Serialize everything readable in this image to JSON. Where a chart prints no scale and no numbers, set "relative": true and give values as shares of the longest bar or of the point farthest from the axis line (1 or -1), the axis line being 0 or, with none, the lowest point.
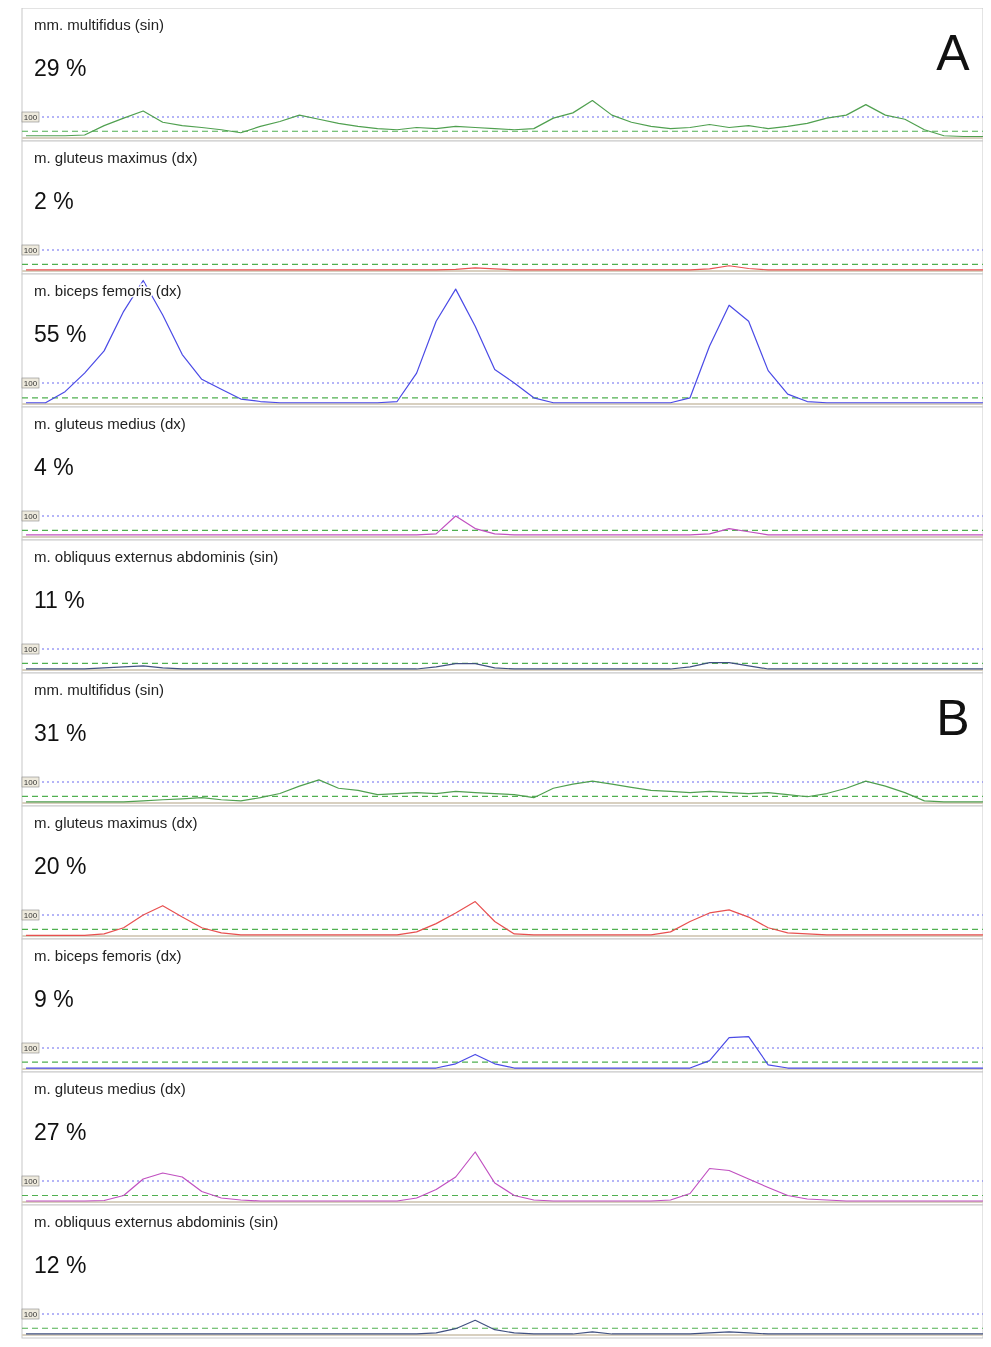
{
  "chart_data": [
    {
      "type": "line",
      "relative": true,
      "title": "mm. multifidus (sin)",
      "annotations": [
        "29 %",
        "A",
        "100"
      ],
      "categories": [
        null,
        null,
        null,
        null,
        null,
        null,
        null,
        null,
        null,
        null,
        null,
        null,
        null,
        null,
        null,
        null,
        null,
        null,
        null,
        null,
        null,
        null,
        null,
        null,
        null,
        null,
        null,
        null,
        null,
        null,
        null,
        null,
        null,
        null,
        null,
        null,
        null,
        null,
        null,
        null,
        null,
        null,
        null,
        null,
        null,
        null,
        null,
        null,
        null,
        null
      ],
      "series": [
        {
          "color": "#50a050",
          "values": [
            0.06,
            0.06,
            0.06,
            0.08,
            0.33,
            0.53,
            0.72,
            0.42,
            0.33,
            0.28,
            0.22,
            0.14,
            0.31,
            0.44,
            0.61,
            0.5,
            0.39,
            0.31,
            0.25,
            0.22,
            0.28,
            0.25,
            0.31,
            0.28,
            0.25,
            0.22,
            0.25,
            0.53,
            0.67,
            1,
            0.61,
            0.42,
            0.31,
            0.25,
            0.28,
            0.36,
            0.28,
            0.33,
            0.25,
            0.31,
            0.39,
            0.53,
            0.61,
            0.89,
            0.61,
            0.5,
            0.22,
            0.06,
            0.04,
            0.04
          ]
        }
      ],
      "ref_lines": [
        {
          "axis": "y",
          "value": 0.56,
          "color": "#6a6af0",
          "line_style": "dotted"
        },
        {
          "axis": "y",
          "value": 0.18,
          "color": "#50b050",
          "line_style": "dashed"
        }
      ]
    },
    {
      "type": "line",
      "relative": true,
      "title": "m. gluteus maximus (dx)",
      "annotations": [
        "2 %",
        "100"
      ],
      "categories": [
        null,
        null,
        null,
        null,
        null,
        null,
        null,
        null,
        null,
        null,
        null,
        null,
        null,
        null,
        null,
        null,
        null,
        null,
        null,
        null,
        null,
        null,
        null,
        null,
        null,
        null,
        null,
        null,
        null,
        null,
        null,
        null,
        null,
        null,
        null,
        null,
        null,
        null,
        null,
        null,
        null,
        null,
        null,
        null,
        null,
        null,
        null,
        null,
        null,
        null
      ],
      "series": [
        {
          "color": "#e85050",
          "values": [
            0.2,
            0.2,
            0.2,
            0.2,
            0.2,
            0.2,
            0.2,
            0.2,
            0.2,
            0.2,
            0.2,
            0.2,
            0.2,
            0.2,
            0.2,
            0.2,
            0.2,
            0.2,
            0.2,
            0.2,
            0.2,
            0.2,
            0.32,
            0.6,
            0.4,
            0.2,
            0.2,
            0.2,
            0.2,
            0.2,
            0.2,
            0.2,
            0.2,
            0.2,
            0.2,
            0.4,
            1,
            0.48,
            0.2,
            0.2,
            0.2,
            0.2,
            0.2,
            0.2,
            0.2,
            0.2,
            0.2,
            0.2,
            0.2,
            0.2
          ]
        }
      ],
      "ref_lines": [
        {
          "axis": "y",
          "value": 4,
          "color": "#6a6af0",
          "line_style": "dotted"
        },
        {
          "axis": "y",
          "value": 1.28,
          "color": "#50b050",
          "line_style": "dashed"
        }
      ]
    },
    {
      "type": "line",
      "relative": true,
      "title": "m. biceps femoris (dx)",
      "annotations": [
        "55 %",
        "100"
      ],
      "categories": [
        null,
        null,
        null,
        null,
        null,
        null,
        null,
        null,
        null,
        null,
        null,
        null,
        null,
        null,
        null,
        null,
        null,
        null,
        null,
        null,
        null,
        null,
        null,
        null,
        null,
        null,
        null,
        null,
        null,
        null,
        null,
        null,
        null,
        null,
        null,
        null,
        null,
        null,
        null,
        null,
        null,
        null,
        null,
        null,
        null,
        null,
        null,
        null,
        null,
        null
      ],
      "series": [
        {
          "color": "#4a4ae6",
          "values": [
            0.01,
            0.01,
            0.1,
            0.25,
            0.43,
            0.75,
            1,
            0.72,
            0.4,
            0.2,
            0.12,
            0.04,
            0.02,
            0.01,
            0.01,
            0.01,
            0.01,
            0.01,
            0.01,
            0.02,
            0.25,
            0.67,
            0.93,
            0.63,
            0.28,
            0.17,
            0.05,
            0.01,
            0.01,
            0.01,
            0.01,
            0.01,
            0.01,
            0.01,
            0.05,
            0.47,
            0.8,
            0.67,
            0.27,
            0.08,
            0.02,
            0.01,
            0.01,
            0.01,
            0.01,
            0.01,
            0.01,
            0.01,
            0.01,
            0.01
          ]
        }
      ],
      "ref_lines": [
        {
          "axis": "y",
          "value": 0.17,
          "color": "#6a6af0",
          "line_style": "dotted"
        },
        {
          "axis": "y",
          "value": 0.05,
          "color": "#50b050",
          "line_style": "dashed"
        }
      ]
    },
    {
      "type": "line",
      "relative": true,
      "title": "m. gluteus medius (dx)",
      "annotations": [
        "4 %",
        "100"
      ],
      "categories": [
        null,
        null,
        null,
        null,
        null,
        null,
        null,
        null,
        null,
        null,
        null,
        null,
        null,
        null,
        null,
        null,
        null,
        null,
        null,
        null,
        null,
        null,
        null,
        null,
        null,
        null,
        null,
        null,
        null,
        null,
        null,
        null,
        null,
        null,
        null,
        null,
        null,
        null,
        null,
        null,
        null,
        null,
        null,
        null,
        null,
        null,
        null,
        null,
        null,
        null
      ],
      "series": [
        {
          "color": "#c050c0",
          "values": [
            0.1,
            0.1,
            0.1,
            0.1,
            0.1,
            0.1,
            0.1,
            0.1,
            0.1,
            0.1,
            0.1,
            0.1,
            0.1,
            0.1,
            0.1,
            0.1,
            0.1,
            0.1,
            0.1,
            0.1,
            0.1,
            0.15,
            1,
            0.4,
            0.15,
            0.1,
            0.1,
            0.1,
            0.1,
            0.1,
            0.1,
            0.1,
            0.1,
            0.1,
            0.1,
            0.15,
            0.4,
            0.25,
            0.1,
            0.1,
            0.1,
            0.1,
            0.1,
            0.1,
            0.1,
            0.1,
            0.1,
            0.1,
            0.1,
            0.1
          ]
        }
      ],
      "ref_lines": [
        {
          "axis": "y",
          "value": 1,
          "color": "#6a6af0",
          "line_style": "dotted"
        },
        {
          "axis": "y",
          "value": 0.32,
          "color": "#50b050",
          "line_style": "dashed"
        }
      ]
    },
    {
      "type": "line",
      "relative": true,
      "title": "m. obliquus externus abdominis (sin)",
      "annotations": [
        "11 %",
        "100"
      ],
      "categories": [
        null,
        null,
        null,
        null,
        null,
        null,
        null,
        null,
        null,
        null,
        null,
        null,
        null,
        null,
        null,
        null,
        null,
        null,
        null,
        null,
        null,
        null,
        null,
        null,
        null,
        null,
        null,
        null,
        null,
        null,
        null,
        null,
        null,
        null,
        null,
        null,
        null,
        null,
        null,
        null,
        null,
        null,
        null,
        null,
        null,
        null,
        null,
        null,
        null,
        null
      ],
      "series": [
        {
          "color": "#405080",
          "values": [
            0.14,
            0.14,
            0.14,
            0.14,
            0.29,
            0.43,
            0.57,
            0.29,
            0.14,
            0.14,
            0.14,
            0.14,
            0.14,
            0.14,
            0.14,
            0.14,
            0.14,
            0.14,
            0.14,
            0.14,
            0.14,
            0.43,
            0.86,
            0.86,
            0.29,
            0.14,
            0.14,
            0.14,
            0.14,
            0.14,
            0.14,
            0.14,
            0.14,
            0.14,
            0.43,
            1,
            1,
            0.57,
            0.14,
            0.14,
            0.14,
            0.14,
            0.14,
            0.14,
            0.14,
            0.14,
            0.14,
            0.14,
            0.14,
            0.14
          ]
        }
      ],
      "ref_lines": [
        {
          "axis": "y",
          "value": 2.86,
          "color": "#6a6af0",
          "line_style": "dotted"
        },
        {
          "axis": "y",
          "value": 0.91,
          "color": "#50b050",
          "line_style": "dashed"
        }
      ]
    },
    {
      "type": "line",
      "relative": true,
      "title": "mm. multifidus (sin)",
      "annotations": [
        "31 %",
        "B",
        "100"
      ],
      "categories": [
        null,
        null,
        null,
        null,
        null,
        null,
        null,
        null,
        null,
        null,
        null,
        null,
        null,
        null,
        null,
        null,
        null,
        null,
        null,
        null,
        null,
        null,
        null,
        null,
        null,
        null,
        null,
        null,
        null,
        null,
        null,
        null,
        null,
        null,
        null,
        null,
        null,
        null,
        null,
        null,
        null,
        null,
        null,
        null,
        null,
        null,
        null,
        null,
        null,
        null
      ],
      "series": [
        {
          "color": "#50a050",
          "values": [
            0.05,
            0.05,
            0.05,
            0.05,
            0.05,
            0.05,
            0.09,
            0.14,
            0.18,
            0.23,
            0.14,
            0.09,
            0.23,
            0.41,
            0.73,
            1,
            0.64,
            0.55,
            0.36,
            0.41,
            0.45,
            0.41,
            0.5,
            0.45,
            0.41,
            0.36,
            0.23,
            0.64,
            0.82,
            0.95,
            0.82,
            0.68,
            0.55,
            0.5,
            0.45,
            0.5,
            0.45,
            0.41,
            0.45,
            0.36,
            0.27,
            0.41,
            0.64,
            0.95,
            0.73,
            0.45,
            0.09,
            0.05,
            0.05,
            0.05
          ]
        }
      ],
      "ref_lines": [
        {
          "axis": "y",
          "value": 0.91,
          "color": "#6a6af0",
          "line_style": "dotted"
        },
        {
          "axis": "y",
          "value": 0.29,
          "color": "#50b050",
          "line_style": "dashed"
        }
      ]
    },
    {
      "type": "line",
      "relative": true,
      "title": "m. gluteus maximus (dx)",
      "annotations": [
        "20 %",
        "100"
      ],
      "categories": [
        null,
        null,
        null,
        null,
        null,
        null,
        null,
        null,
        null,
        null,
        null,
        null,
        null,
        null,
        null,
        null,
        null,
        null,
        null,
        null,
        null,
        null,
        null,
        null,
        null,
        null,
        null,
        null,
        null,
        null,
        null,
        null,
        null,
        null,
        null,
        null,
        null,
        null,
        null,
        null,
        null,
        null,
        null,
        null,
        null,
        null,
        null,
        null,
        null,
        null
      ],
      "series": [
        {
          "color": "#e85050",
          "values": [
            0.02,
            0.02,
            0.02,
            0.02,
            0.06,
            0.24,
            0.61,
            0.88,
            0.55,
            0.24,
            0.09,
            0.03,
            0.03,
            0.03,
            0.03,
            0.03,
            0.03,
            0.03,
            0.03,
            0.03,
            0.12,
            0.36,
            0.67,
            1,
            0.42,
            0.06,
            0.03,
            0.03,
            0.03,
            0.03,
            0.03,
            0.03,
            0.03,
            0.12,
            0.42,
            0.67,
            0.76,
            0.55,
            0.24,
            0.09,
            0.06,
            0.03,
            0.03,
            0.03,
            0.03,
            0.03,
            0.03,
            0.03,
            0.03,
            0.03
          ]
        }
      ],
      "ref_lines": [
        {
          "axis": "y",
          "value": 0.61,
          "color": "#6a6af0",
          "line_style": "dotted"
        },
        {
          "axis": "y",
          "value": 0.19,
          "color": "#50b050",
          "line_style": "dashed"
        }
      ]
    },
    {
      "type": "line",
      "relative": true,
      "title": "m. biceps femoris (dx)",
      "annotations": [
        "9 %",
        "100"
      ],
      "categories": [
        null,
        null,
        null,
        null,
        null,
        null,
        null,
        null,
        null,
        null,
        null,
        null,
        null,
        null,
        null,
        null,
        null,
        null,
        null,
        null,
        null,
        null,
        null,
        null,
        null,
        null,
        null,
        null,
        null,
        null,
        null,
        null,
        null,
        null,
        null,
        null,
        null,
        null,
        null,
        null,
        null,
        null,
        null,
        null,
        null,
        null,
        null,
        null,
        null,
        null
      ],
      "series": [
        {
          "color": "#4a4ae6",
          "values": [
            0.03,
            0.03,
            0.03,
            0.03,
            0.03,
            0.03,
            0.03,
            0.03,
            0.03,
            0.03,
            0.03,
            0.03,
            0.03,
            0.03,
            0.03,
            0.03,
            0.03,
            0.03,
            0.03,
            0.03,
            0.03,
            0.03,
            0.16,
            0.45,
            0.16,
            0.03,
            0.03,
            0.03,
            0.03,
            0.03,
            0.03,
            0.03,
            0.03,
            0.03,
            0.03,
            0.26,
            0.97,
            1,
            0.13,
            0.03,
            0.03,
            0.03,
            0.03,
            0.03,
            0.03,
            0.03,
            0.03,
            0.03,
            0.03,
            0.03
          ]
        }
      ],
      "ref_lines": [
        {
          "axis": "y",
          "value": 0.65,
          "color": "#6a6af0",
          "line_style": "dotted"
        },
        {
          "axis": "y",
          "value": 0.21,
          "color": "#50b050",
          "line_style": "dashed"
        }
      ]
    },
    {
      "type": "line",
      "relative": true,
      "title": "m. gluteus medius (dx)",
      "annotations": [
        "27 %",
        "100"
      ],
      "categories": [
        null,
        null,
        null,
        null,
        null,
        null,
        null,
        null,
        null,
        null,
        null,
        null,
        null,
        null,
        null,
        null,
        null,
        null,
        null,
        null,
        null,
        null,
        null,
        null,
        null,
        null,
        null,
        null,
        null,
        null,
        null,
        null,
        null,
        null,
        null,
        null,
        null,
        null,
        null,
        null,
        null,
        null,
        null,
        null,
        null,
        null,
        null,
        null,
        null,
        null
      ],
      "series": [
        {
          "color": "#c050c0",
          "values": [
            0.02,
            0.02,
            0.02,
            0.02,
            0.03,
            0.13,
            0.46,
            0.58,
            0.5,
            0.21,
            0.08,
            0.04,
            0.02,
            0.02,
            0.02,
            0.02,
            0.02,
            0.02,
            0.02,
            0.02,
            0.08,
            0.25,
            0.5,
            1,
            0.38,
            0.13,
            0.04,
            0.02,
            0.02,
            0.02,
            0.02,
            0.02,
            0.02,
            0.04,
            0.17,
            0.67,
            0.63,
            0.46,
            0.29,
            0.13,
            0.06,
            0.04,
            0.02,
            0.02,
            0.02,
            0.02,
            0.02,
            0.02,
            0.02,
            0.02
          ]
        }
      ],
      "ref_lines": [
        {
          "axis": "y",
          "value": 0.42,
          "color": "#6a6af0",
          "line_style": "dotted"
        },
        {
          "axis": "y",
          "value": 0.13,
          "color": "#50b050",
          "line_style": "dashed"
        }
      ]
    },
    {
      "type": "line",
      "relative": true,
      "title": "m. obliquus externus abdominis (sin)",
      "annotations": [
        "12 %",
        "100"
      ],
      "categories": [
        null,
        null,
        null,
        null,
        null,
        null,
        null,
        null,
        null,
        null,
        null,
        null,
        null,
        null,
        null,
        null,
        null,
        null,
        null,
        null,
        null,
        null,
        null,
        null,
        null,
        null,
        null,
        null,
        null,
        null,
        null,
        null,
        null,
        null,
        null,
        null,
        null,
        null,
        null,
        null,
        null,
        null,
        null,
        null,
        null,
        null,
        null,
        null,
        null,
        null
      ],
      "series": [
        {
          "color": "#405080",
          "values": [
            0.07,
            0.07,
            0.07,
            0.07,
            0.07,
            0.07,
            0.07,
            0.07,
            0.07,
            0.07,
            0.07,
            0.07,
            0.07,
            0.07,
            0.07,
            0.07,
            0.07,
            0.07,
            0.07,
            0.07,
            0.07,
            0.14,
            0.43,
            1,
            0.36,
            0.14,
            0.07,
            0.07,
            0.07,
            0.21,
            0.07,
            0.07,
            0.07,
            0.07,
            0.07,
            0.14,
            0.21,
            0.14,
            0.07,
            0.07,
            0.07,
            0.07,
            0.07,
            0.07,
            0.07,
            0.07,
            0.07,
            0.07,
            0.07,
            0.07
          ]
        }
      ],
      "ref_lines": [
        {
          "axis": "y",
          "value": 1.43,
          "color": "#6a6af0",
          "line_style": "dotted"
        },
        {
          "axis": "y",
          "value": 0.46,
          "color": "#50b050",
          "line_style": "dashed"
        }
      ]
    }
  ]
}
